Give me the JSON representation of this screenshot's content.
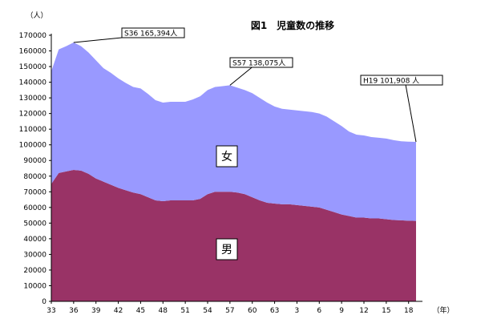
{
  "chart_data": {
    "type": "area",
    "stacked": true,
    "title": "図1　児童数の推移",
    "ylabel": "（人）",
    "xlabel": "（年）",
    "ylim": [
      0,
      170000
    ],
    "yticks": [
      0,
      10000,
      20000,
      30000,
      40000,
      50000,
      60000,
      70000,
      80000,
      90000,
      100000,
      110000,
      120000,
      130000,
      140000,
      150000,
      160000,
      170000
    ],
    "ytick_labels": [
      "0",
      "10000",
      "20000",
      "30000",
      "40000",
      "50000",
      "60000",
      "70000",
      "80000",
      "90000",
      "100000",
      "110000",
      "120000",
      "130000",
      "140000",
      "150000",
      "160000",
      "170000"
    ],
    "xtick_labels": [
      "33",
      "36",
      "39",
      "42",
      "45",
      "48",
      "51",
      "54",
      "57",
      "60",
      "63",
      "3",
      "6",
      "9",
      "12",
      "15",
      "18"
    ],
    "x": [
      "33",
      "34",
      "35",
      "36",
      "37",
      "38",
      "39",
      "40",
      "41",
      "42",
      "43",
      "44",
      "45",
      "46",
      "47",
      "48",
      "49",
      "50",
      "51",
      "52",
      "53",
      "54",
      "55",
      "56",
      "57",
      "58",
      "59",
      "60",
      "61",
      "62",
      "63",
      "1",
      "2",
      "3",
      "4",
      "5",
      "6",
      "7",
      "8",
      "9",
      "10",
      "11",
      "12",
      "13",
      "14",
      "15",
      "16",
      "17",
      "18",
      "19"
    ],
    "series": [
      {
        "name": "男",
        "color": "#993366",
        "values": [
          75000,
          82000,
          83000,
          84000,
          83500,
          81500,
          78500,
          76500,
          74500,
          72500,
          71000,
          69500,
          68500,
          66500,
          64500,
          64000,
          64500,
          64500,
          64500,
          64500,
          65500,
          68500,
          70000,
          70000,
          70000,
          69500,
          68500,
          66500,
          64500,
          63000,
          62500,
          62000,
          62000,
          61500,
          61000,
          60500,
          60000,
          58500,
          57000,
          55500,
          54500,
          53500,
          53500,
          53000,
          53000,
          52500,
          52000,
          51800,
          51500,
          51400
        ]
      },
      {
        "name": "女",
        "color": "#9999ff",
        "values": [
          72000,
          79000,
          80000,
          81394,
          79500,
          77500,
          75500,
          72500,
          71500,
          70000,
          68500,
          67500,
          67500,
          66000,
          64000,
          63000,
          63000,
          63000,
          63000,
          64500,
          65500,
          66500,
          67000,
          67500,
          68075,
          67000,
          66500,
          66500,
          65500,
          64000,
          62000,
          61000,
          60500,
          60500,
          60500,
          60500,
          60000,
          59500,
          58000,
          56500,
          54000,
          53000,
          52500,
          52000,
          51500,
          51500,
          51000,
          50500,
          50500,
          50508
        ]
      }
    ],
    "annotations": [
      {
        "text": "S36  165,394人",
        "x": "36",
        "y": 165394
      },
      {
        "text": "S57  138,075人",
        "x": "57",
        "y": 138075
      },
      {
        "text": "H19 101,908 人",
        "x": "19",
        "y": 101908
      }
    ],
    "legend": "inline",
    "grid": false
  }
}
